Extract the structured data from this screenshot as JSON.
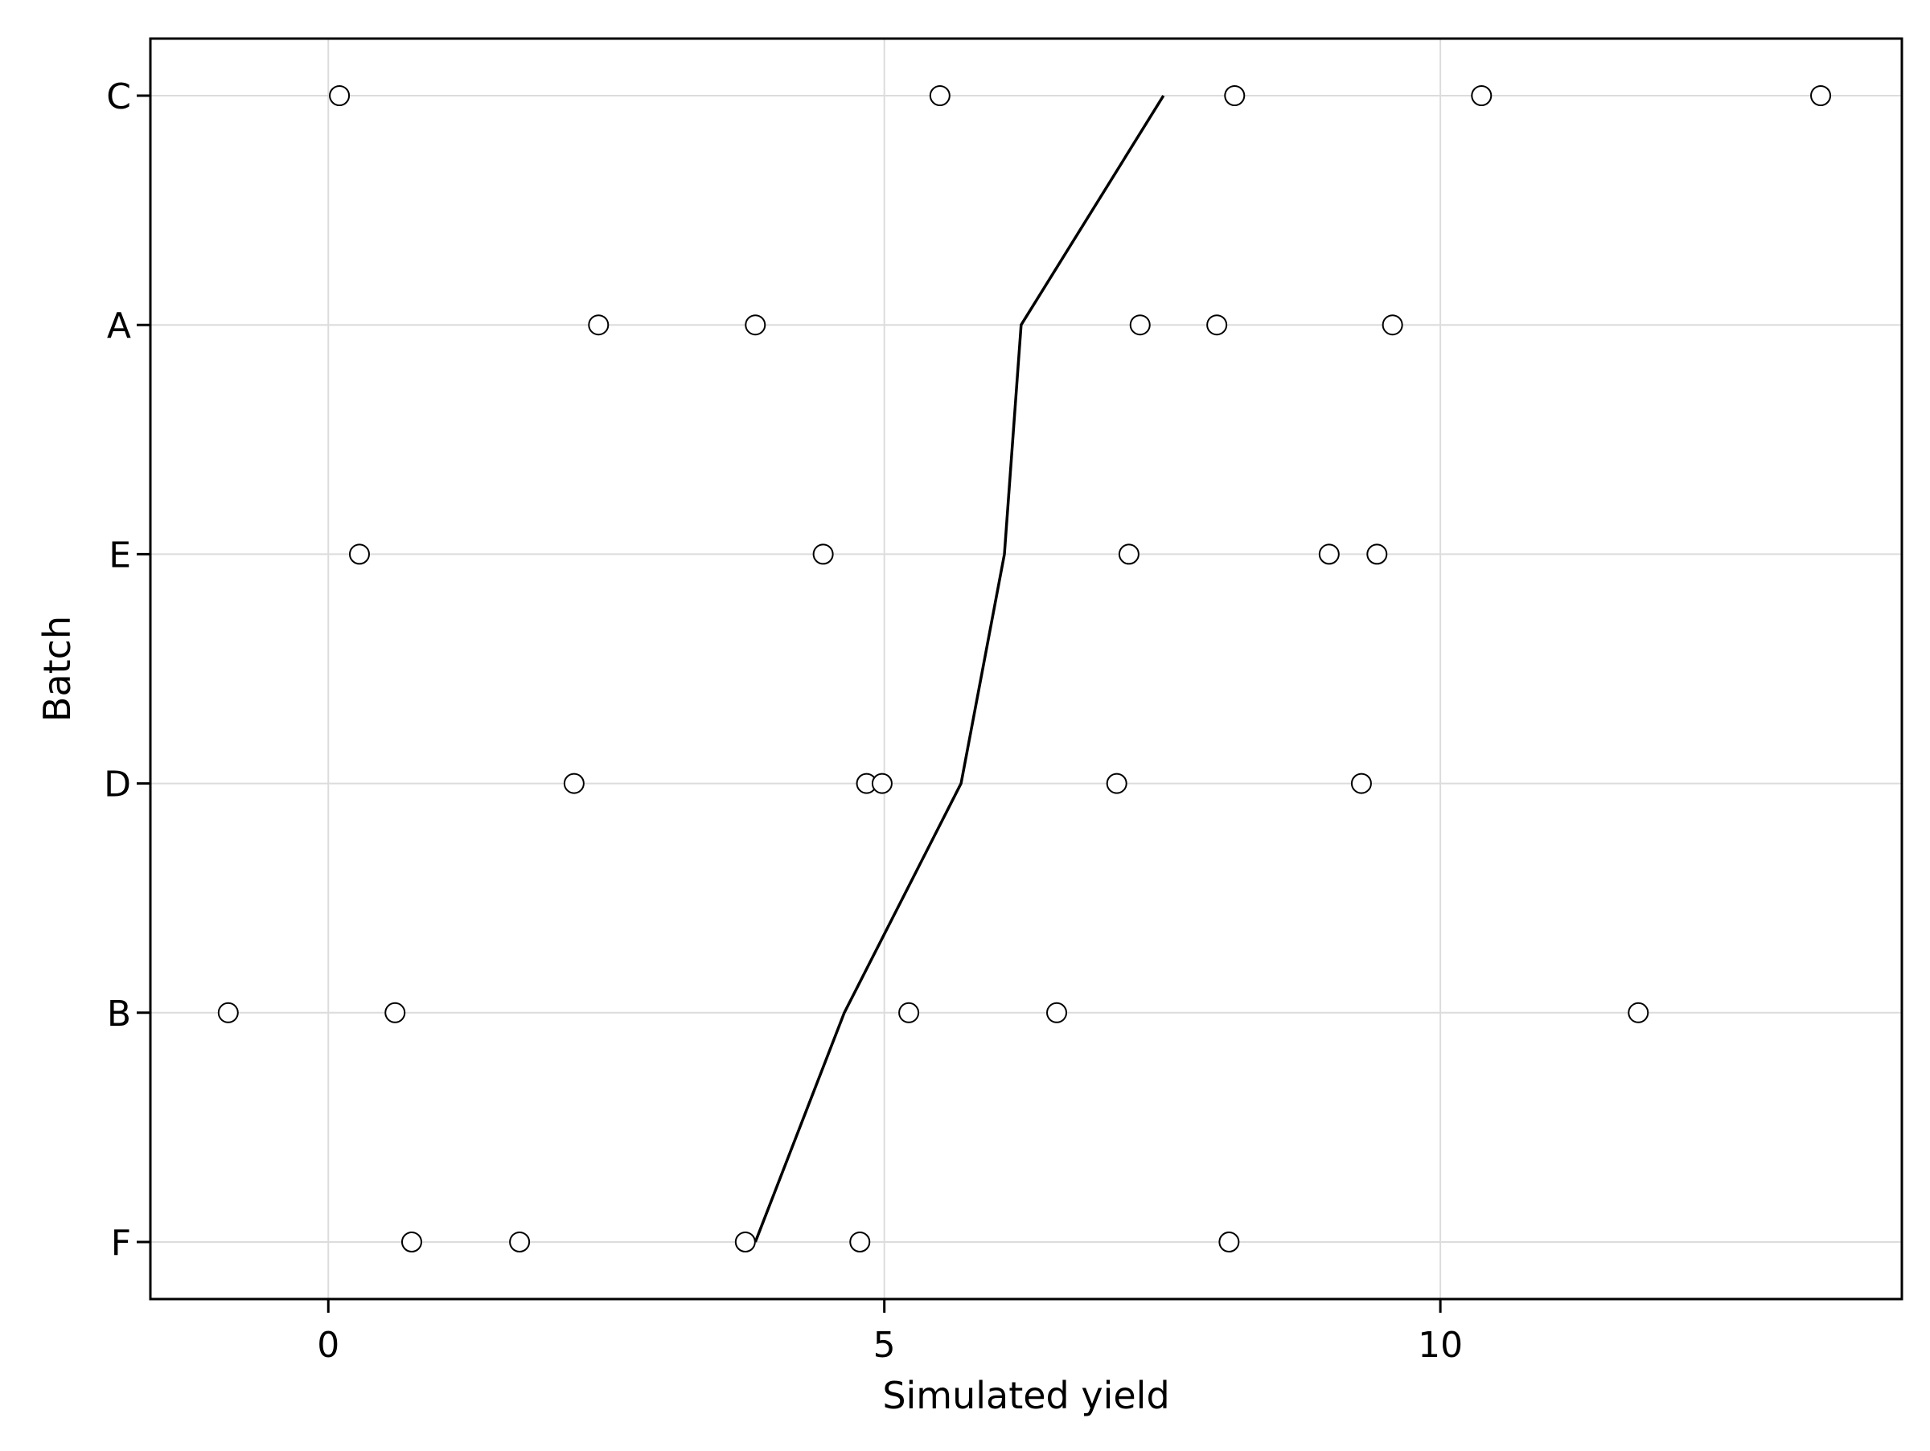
{
  "chart_data": {
    "type": "scatter",
    "title": "",
    "xlabel": "Simulated yield",
    "ylabel": "Batch",
    "categories": [
      "C",
      "A",
      "E",
      "D",
      "B",
      "F"
    ],
    "xlim": [
      -1.6,
      14.15
    ],
    "xticks": [
      0,
      5,
      10
    ],
    "grid": true,
    "series": [
      {
        "kind": "points",
        "marker": "open-circle",
        "points": [
          {
            "batch": "C",
            "x": 0.1
          },
          {
            "batch": "C",
            "x": 5.5
          },
          {
            "batch": "C",
            "x": 8.15
          },
          {
            "batch": "C",
            "x": 10.37
          },
          {
            "batch": "C",
            "x": 13.42
          },
          {
            "batch": "A",
            "x": 2.43
          },
          {
            "batch": "A",
            "x": 3.84
          },
          {
            "batch": "A",
            "x": 7.3
          },
          {
            "batch": "A",
            "x": 7.99
          },
          {
            "batch": "A",
            "x": 9.57
          },
          {
            "batch": "E",
            "x": 0.28
          },
          {
            "batch": "E",
            "x": 4.45
          },
          {
            "batch": "E",
            "x": 7.2
          },
          {
            "batch": "E",
            "x": 9.0
          },
          {
            "batch": "E",
            "x": 9.43
          },
          {
            "batch": "D",
            "x": 2.21
          },
          {
            "batch": "D",
            "x": 4.84
          },
          {
            "batch": "D",
            "x": 4.98
          },
          {
            "batch": "D",
            "x": 7.09
          },
          {
            "batch": "D",
            "x": 9.29
          },
          {
            "batch": "B",
            "x": -0.9
          },
          {
            "batch": "B",
            "x": 0.6
          },
          {
            "batch": "B",
            "x": 5.22
          },
          {
            "batch": "B",
            "x": 6.55
          },
          {
            "batch": "B",
            "x": 11.78
          },
          {
            "batch": "F",
            "x": 0.75
          },
          {
            "batch": "F",
            "x": 1.72
          },
          {
            "batch": "F",
            "x": 3.75
          },
          {
            "batch": "F",
            "x": 4.78
          },
          {
            "batch": "F",
            "x": 8.1
          }
        ]
      },
      {
        "kind": "line",
        "points": [
          {
            "batch": "C",
            "x": 7.51
          },
          {
            "batch": "A",
            "x": 6.23
          },
          {
            "batch": "E",
            "x": 6.08
          },
          {
            "batch": "D",
            "x": 5.69
          },
          {
            "batch": "B",
            "x": 4.64
          },
          {
            "batch": "F",
            "x": 3.84
          }
        ]
      }
    ]
  }
}
